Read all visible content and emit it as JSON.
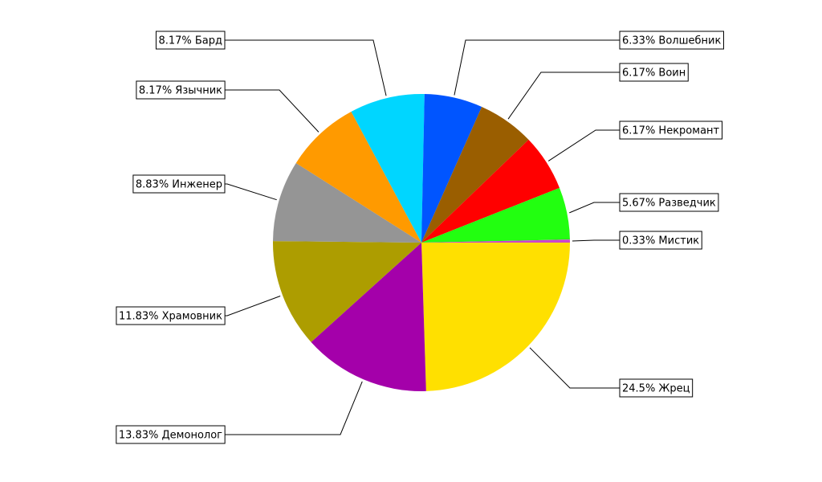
{
  "chart_data": {
    "type": "pie",
    "values": [
      24.5,
      13.83,
      11.83,
      8.83,
      8.17,
      8.17,
      6.33,
      6.17,
      6.17,
      5.67,
      0.33
    ],
    "value_labels": [
      "24.5% Жрец",
      "13.83% Демонолог",
      "11.83% Храмовник",
      "8.83% Инженер",
      "8.17% Язычник",
      "8.17% Бард",
      "6.33% Волшебник",
      "6.17% Воин",
      "6.17% Некромант",
      "5.67% Разведчик",
      "0.33% Мистик"
    ],
    "colors": [
      "#ffe000",
      "#a400aa",
      "#ad9d00",
      "#959595",
      "#ff9a00",
      "#00d6ff",
      "#0055ff",
      "#9a5e00",
      "#ff0000",
      "#22ff10",
      "#cc44cc"
    ],
    "startangle": 0,
    "clockwise": true
  }
}
